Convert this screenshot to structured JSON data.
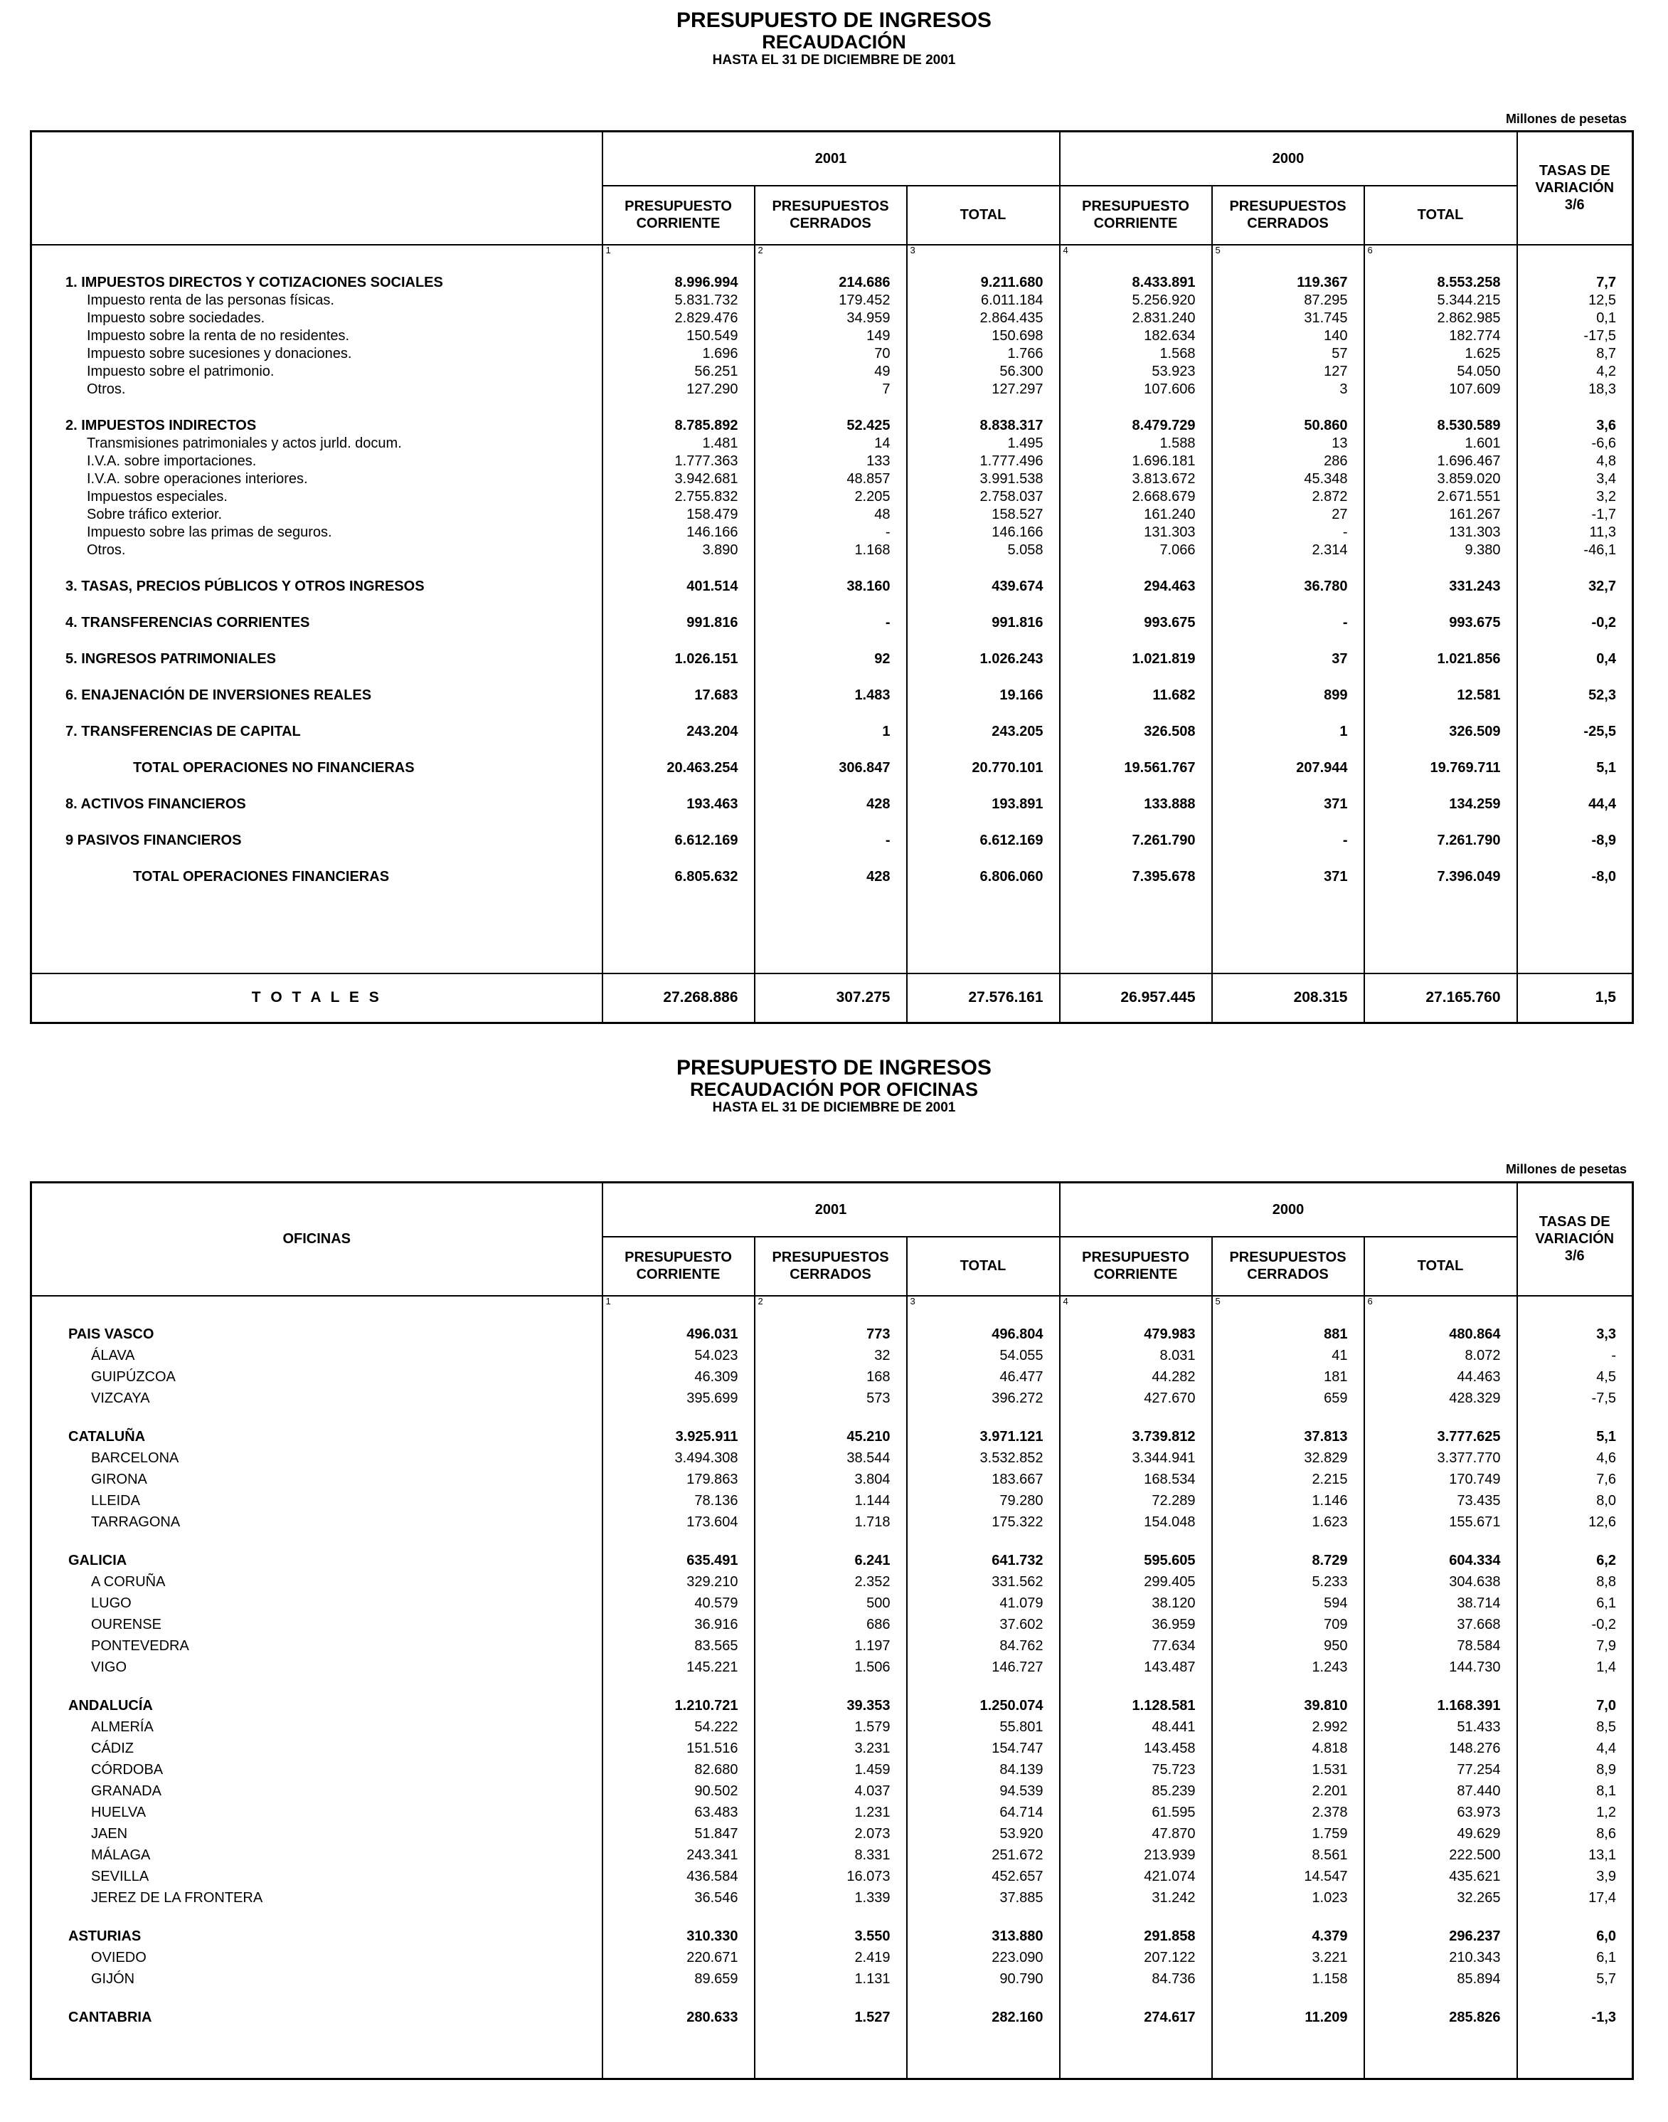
{
  "table1": {
    "title": "PRESUPUESTO DE INGRESOS",
    "subtitle": "RECAUDACIÓN",
    "date": "HASTA EL 31 DE DICIEMBRE DE 2001",
    "unit": "Millones de pesetas",
    "years": [
      "2001",
      "2000"
    ],
    "columns": [
      [
        "PRESUPUESTO",
        "CORRIENTE"
      ],
      [
        "PRESUPUESTOS",
        "CERRADOS"
      ],
      [
        "TOTAL"
      ]
    ],
    "rate_header": [
      "TASAS DE",
      "VARIACIÓN",
      "3/6"
    ],
    "col_numbers": [
      "1",
      "2",
      "3",
      "4",
      "5",
      "6"
    ],
    "body": [
      {
        "heading": [
          "1. IMPUESTOS DIRECTOS Y COTIZACIONES SOCIALES",
          "8.996.994",
          "214.686",
          "9.211.680",
          "8.433.891",
          "119.367",
          "8.553.258",
          "7,7"
        ],
        "items": [
          [
            "Impuesto renta de las personas físicas.",
            "5.831.732",
            "179.452",
            "6.011.184",
            "5.256.920",
            "87.295",
            "5.344.215",
            "12,5"
          ],
          [
            "Impuesto sobre sociedades.",
            "2.829.476",
            "34.959",
            "2.864.435",
            "2.831.240",
            "31.745",
            "2.862.985",
            "0,1"
          ],
          [
            "Impuesto sobre la renta de no residentes.",
            "150.549",
            "149",
            "150.698",
            "182.634",
            "140",
            "182.774",
            "-17,5"
          ],
          [
            "Impuesto sobre sucesiones y donaciones.",
            "1.696",
            "70",
            "1.766",
            "1.568",
            "57",
            "1.625",
            "8,7"
          ],
          [
            "Impuesto sobre el patrimonio.",
            "56.251",
            "49",
            "56.300",
            "53.923",
            "127",
            "54.050",
            "4,2"
          ],
          [
            "Otros.",
            "127.290",
            "7",
            "127.297",
            "107.606",
            "3",
            "107.609",
            "18,3"
          ]
        ]
      },
      {
        "heading": [
          "2. IMPUESTOS INDIRECTOS",
          "8.785.892",
          "52.425",
          "8.838.317",
          "8.479.729",
          "50.860",
          "8.530.589",
          "3,6"
        ],
        "items": [
          [
            "Transmisiones patrimoniales y actos jurld. docum.",
            "1.481",
            "14",
            "1.495",
            "1.588",
            "13",
            "1.601",
            "-6,6"
          ],
          [
            "I.V.A. sobre importaciones.",
            "1.777.363",
            "133",
            "1.777.496",
            "1.696.181",
            "286",
            "1.696.467",
            "4,8"
          ],
          [
            "I.V.A. sobre operaciones interiores.",
            "3.942.681",
            "48.857",
            "3.991.538",
            "3.813.672",
            "45.348",
            "3.859.020",
            "3,4"
          ],
          [
            "Impuestos especiales.",
            "2.755.832",
            "2.205",
            "2.758.037",
            "2.668.679",
            "2.872",
            "2.671.551",
            "3,2"
          ],
          [
            "Sobre tráfico exterior.",
            "158.479",
            "48",
            "158.527",
            "161.240",
            "27",
            "161.267",
            "-1,7"
          ],
          [
            "Impuesto sobre las primas de seguros.",
            "146.166",
            "-",
            "146.166",
            "131.303",
            "-",
            "131.303",
            "11,3"
          ],
          [
            "Otros.",
            "3.890",
            "1.168",
            "5.058",
            "7.066",
            "2.314",
            "9.380",
            "-46,1"
          ]
        ]
      },
      {
        "heading": [
          "3. TASAS, PRECIOS PÚBLICOS Y OTROS INGRESOS",
          "401.514",
          "38.160",
          "439.674",
          "294.463",
          "36.780",
          "331.243",
          "32,7"
        ]
      },
      {
        "heading": [
          "4. TRANSFERENCIAS CORRIENTES",
          "991.816",
          "-",
          "991.816",
          "993.675",
          "-",
          "993.675",
          "-0,2"
        ]
      },
      {
        "heading": [
          "5. INGRESOS PATRIMONIALES",
          "1.026.151",
          "92",
          "1.026.243",
          "1.021.819",
          "37",
          "1.021.856",
          "0,4"
        ]
      },
      {
        "heading": [
          "6. ENAJENACIÓN DE INVERSIONES REALES",
          "17.683",
          "1.483",
          "19.166",
          "11.682",
          "899",
          "12.581",
          "52,3"
        ]
      },
      {
        "heading": [
          "7. TRANSFERENCIAS DE CAPITAL",
          "243.204",
          "1",
          "243.205",
          "326.508",
          "1",
          "326.509",
          "-25,5"
        ]
      },
      {
        "subtotal": [
          "TOTAL OPERACIONES NO FINANCIERAS",
          "20.463.254",
          "306.847",
          "20.770.101",
          "19.561.767",
          "207.944",
          "19.769.711",
          "5,1"
        ]
      },
      {
        "heading": [
          "8. ACTIVOS FINANCIEROS",
          "193.463",
          "428",
          "193.891",
          "133.888",
          "371",
          "134.259",
          "44,4"
        ]
      },
      {
        "heading": [
          "9 PASIVOS FINANCIEROS",
          "6.612.169",
          "-",
          "6.612.169",
          "7.261.790",
          "-",
          "7.261.790",
          "-8,9"
        ]
      },
      {
        "subtotal": [
          "TOTAL OPERACIONES FINANCIERAS",
          "6.805.632",
          "428",
          "6.806.060",
          "7.395.678",
          "371",
          "7.396.049",
          "-8,0"
        ]
      }
    ],
    "total": [
      "T O T A L E S",
      "27.268.886",
      "307.275",
      "27.576.161",
      "26.957.445",
      "208.315",
      "27.165.760",
      "1,5"
    ]
  },
  "table2": {
    "title": "PRESUPUESTO DE INGRESOS",
    "subtitle": "RECAUDACIÓN POR OFICINAS",
    "date": "HASTA EL 31 DE DICIEMBRE DE 2001",
    "unit": "Millones de pesetas",
    "stub_header": "OFICINAS",
    "years": [
      "2001",
      "2000"
    ],
    "columns": [
      [
        "PRESUPUESTO",
        "CORRIENTE"
      ],
      [
        "PRESUPUESTOS",
        "CERRADOS"
      ],
      [
        "TOTAL"
      ]
    ],
    "rate_header": [
      "TASAS DE",
      "VARIACIÓN",
      "3/6"
    ],
    "col_numbers": [
      "1",
      "2",
      "3",
      "4",
      "5",
      "6"
    ],
    "body": [
      {
        "heading": [
          "PAIS VASCO",
          "496.031",
          "773",
          "496.804",
          "479.983",
          "881",
          "480.864",
          "3,3"
        ],
        "items": [
          [
            "ÁLAVA",
            "54.023",
            "32",
            "54.055",
            "8.031",
            "41",
            "8.072",
            "-"
          ],
          [
            "GUIPÚZCOA",
            "46.309",
            "168",
            "46.477",
            "44.282",
            "181",
            "44.463",
            "4,5"
          ],
          [
            "VIZCAYA",
            "395.699",
            "573",
            "396.272",
            "427.670",
            "659",
            "428.329",
            "-7,5"
          ]
        ]
      },
      {
        "heading": [
          "CATALUÑA",
          "3.925.911",
          "45.210",
          "3.971.121",
          "3.739.812",
          "37.813",
          "3.777.625",
          "5,1"
        ],
        "items": [
          [
            "BARCELONA",
            "3.494.308",
            "38.544",
            "3.532.852",
            "3.344.941",
            "32.829",
            "3.377.770",
            "4,6"
          ],
          [
            "GIRONA",
            "179.863",
            "3.804",
            "183.667",
            "168.534",
            "2.215",
            "170.749",
            "7,6"
          ],
          [
            "LLEIDA",
            "78.136",
            "1.144",
            "79.280",
            "72.289",
            "1.146",
            "73.435",
            "8,0"
          ],
          [
            "TARRAGONA",
            "173.604",
            "1.718",
            "175.322",
            "154.048",
            "1.623",
            "155.671",
            "12,6"
          ]
        ]
      },
      {
        "heading": [
          "GALICIA",
          "635.491",
          "6.241",
          "641.732",
          "595.605",
          "8.729",
          "604.334",
          "6,2"
        ],
        "items": [
          [
            "A CORUÑA",
            "329.210",
            "2.352",
            "331.562",
            "299.405",
            "5.233",
            "304.638",
            "8,8"
          ],
          [
            "LUGO",
            "40.579",
            "500",
            "41.079",
            "38.120",
            "594",
            "38.714",
            "6,1"
          ],
          [
            "OURENSE",
            "36.916",
            "686",
            "37.602",
            "36.959",
            "709",
            "37.668",
            "-0,2"
          ],
          [
            "PONTEVEDRA",
            "83.565",
            "1.197",
            "84.762",
            "77.634",
            "950",
            "78.584",
            "7,9"
          ],
          [
            "VIGO",
            "145.221",
            "1.506",
            "146.727",
            "143.487",
            "1.243",
            "144.730",
            "1,4"
          ]
        ]
      },
      {
        "heading": [
          "ANDALUCÍA",
          "1.210.721",
          "39.353",
          "1.250.074",
          "1.128.581",
          "39.810",
          "1.168.391",
          "7,0"
        ],
        "items": [
          [
            "ALMERÍA",
            "54.222",
            "1.579",
            "55.801",
            "48.441",
            "2.992",
            "51.433",
            "8,5"
          ],
          [
            "CÁDIZ",
            "151.516",
            "3.231",
            "154.747",
            "143.458",
            "4.818",
            "148.276",
            "4,4"
          ],
          [
            "CÓRDOBA",
            "82.680",
            "1.459",
            "84.139",
            "75.723",
            "1.531",
            "77.254",
            "8,9"
          ],
          [
            "GRANADA",
            "90.502",
            "4.037",
            "94.539",
            "85.239",
            "2.201",
            "87.440",
            "8,1"
          ],
          [
            "HUELVA",
            "63.483",
            "1.231",
            "64.714",
            "61.595",
            "2.378",
            "63.973",
            "1,2"
          ],
          [
            "JAEN",
            "51.847",
            "2.073",
            "53.920",
            "47.870",
            "1.759",
            "49.629",
            "8,6"
          ],
          [
            "MÁLAGA",
            "243.341",
            "8.331",
            "251.672",
            "213.939",
            "8.561",
            "222.500",
            "13,1"
          ],
          [
            "SEVILLA",
            "436.584",
            "16.073",
            "452.657",
            "421.074",
            "14.547",
            "435.621",
            "3,9"
          ],
          [
            "JEREZ DE LA FRONTERA",
            "36.546",
            "1.339",
            "37.885",
            "31.242",
            "1.023",
            "32.265",
            "17,4"
          ]
        ]
      },
      {
        "heading": [
          "ASTURIAS",
          "310.330",
          "3.550",
          "313.880",
          "291.858",
          "4.379",
          "296.237",
          "6,0"
        ],
        "items": [
          [
            "OVIEDO",
            "220.671",
            "2.419",
            "223.090",
            "207.122",
            "3.221",
            "210.343",
            "6,1"
          ],
          [
            "GIJÓN",
            "89.659",
            "1.131",
            "90.790",
            "84.736",
            "1.158",
            "85.894",
            "5,7"
          ]
        ]
      },
      {
        "heading": [
          "CANTABRIA",
          "280.633",
          "1.527",
          "282.160",
          "274.617",
          "11.209",
          "285.826",
          "-1,3"
        ]
      }
    ]
  }
}
